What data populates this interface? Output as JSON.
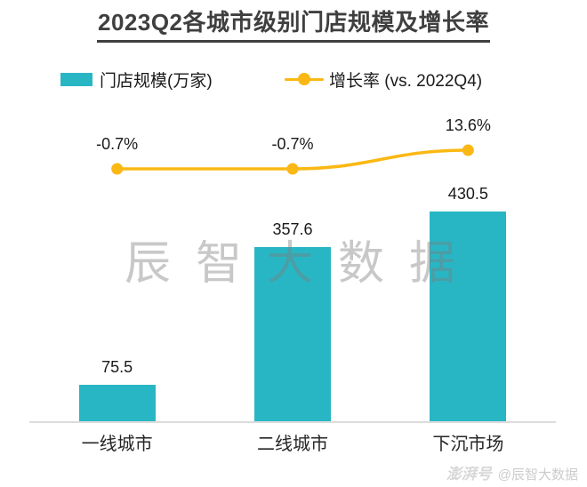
{
  "title": {
    "text": "2023Q2各城市级别门店规模及增长率"
  },
  "legend": [
    {
      "label": "门店规模(万家)",
      "type": "bar-swatch",
      "color": "#29B6C4"
    },
    {
      "label": "增长率 (vs. 2022Q4)",
      "type": "line-dot",
      "color": "#FBB814"
    }
  ],
  "watermark_center": "辰智大数据",
  "watermark_bottom": {
    "logo": "澎湃号",
    "text": "@辰智大数据"
  },
  "colors": {
    "bar": "#29B6C4",
    "line": "#FBB814",
    "title": "#3f3f3f",
    "axis": "#dcdcdc",
    "label": "#1a1a1a"
  },
  "chart_data": {
    "type": "bar",
    "subtype": "bar+line combo",
    "title": "2023Q2各城市级别门店规模及增长率",
    "categories": [
      "一线城市",
      "二线城市",
      "下沉市场"
    ],
    "series": [
      {
        "name": "门店规模(万家)",
        "type": "bar",
        "axis": "left",
        "values": [
          75.5,
          357.6,
          430.5
        ],
        "data_labels": [
          "75.5",
          "357.6",
          "430.5"
        ],
        "color": "#29B6C4"
      },
      {
        "name": "增长率 (vs. 2022Q4)",
        "type": "line",
        "axis": "right",
        "values": [
          -0.7,
          -0.7,
          13.6
        ],
        "data_labels": [
          "-0.7%",
          "-0.7%",
          "13.6%"
        ],
        "color": "#FBB814"
      }
    ],
    "xlabel": "",
    "ylabel": "",
    "axes_visible": false,
    "grid": false,
    "legend_position": "top-left"
  }
}
